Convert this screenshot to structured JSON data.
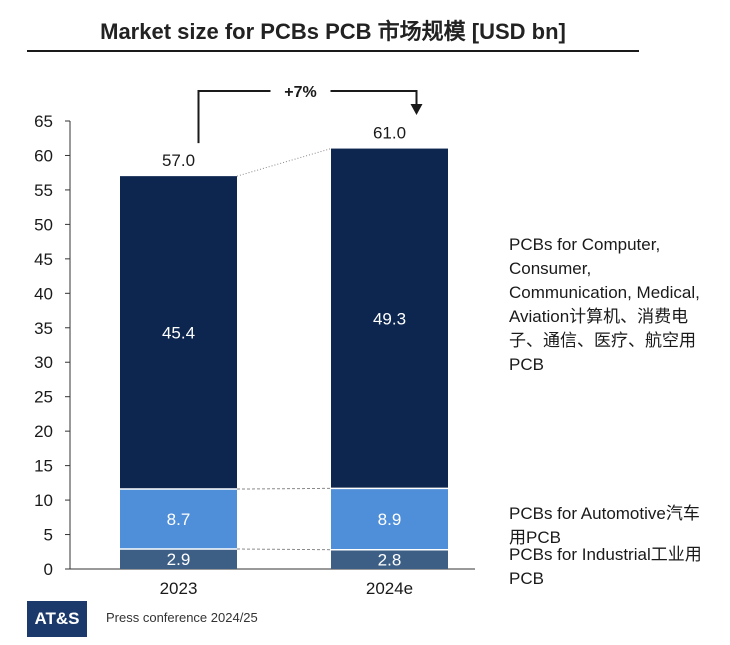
{
  "title": "Market size for PCBs PCB 市场规模 [USD bn]",
  "growth_label": "+7%",
  "footer": {
    "logo_text": "AT&S",
    "text": "Press conference 2024/25"
  },
  "legend": {
    "main": "PCBs for Computer, Consumer, Communication, Medical, Aviation计算机、消费电子、通信、医疗、航空用PCB",
    "automotive": "PCBs for Automotive汽车用PCB",
    "industrial": "PCBs for Industrial工业用PCB"
  },
  "chart_data": {
    "type": "bar",
    "stacked": true,
    "categories": [
      "2023",
      "2024e"
    ],
    "series": [
      {
        "name": "PCBs for Industrial工业用PCB",
        "values": [
          2.9,
          2.8
        ],
        "color": "#3d5f86"
      },
      {
        "name": "PCBs for Automotive汽车用PCB",
        "values": [
          8.7,
          8.9
        ],
        "color": "#4f8fd9"
      },
      {
        "name": "PCBs for Computer, Consumer, Communication, Medical, Aviation计算机、消费电子、通信、医疗、航空用PCB",
        "values": [
          45.4,
          49.3
        ],
        "color": "#0c2650"
      }
    ],
    "totals": [
      57.0,
      61.0
    ],
    "total_labels": [
      "57.0",
      "61.0"
    ],
    "segment_labels": [
      [
        "2.9",
        "8.7",
        "45.4"
      ],
      [
        "2.8",
        "8.9",
        "49.3"
      ]
    ],
    "ylim": [
      0,
      65
    ],
    "yticks": [
      0,
      5,
      10,
      15,
      20,
      25,
      30,
      35,
      40,
      45,
      50,
      55,
      60,
      65
    ],
    "grid": false,
    "legend_position": "right"
  }
}
